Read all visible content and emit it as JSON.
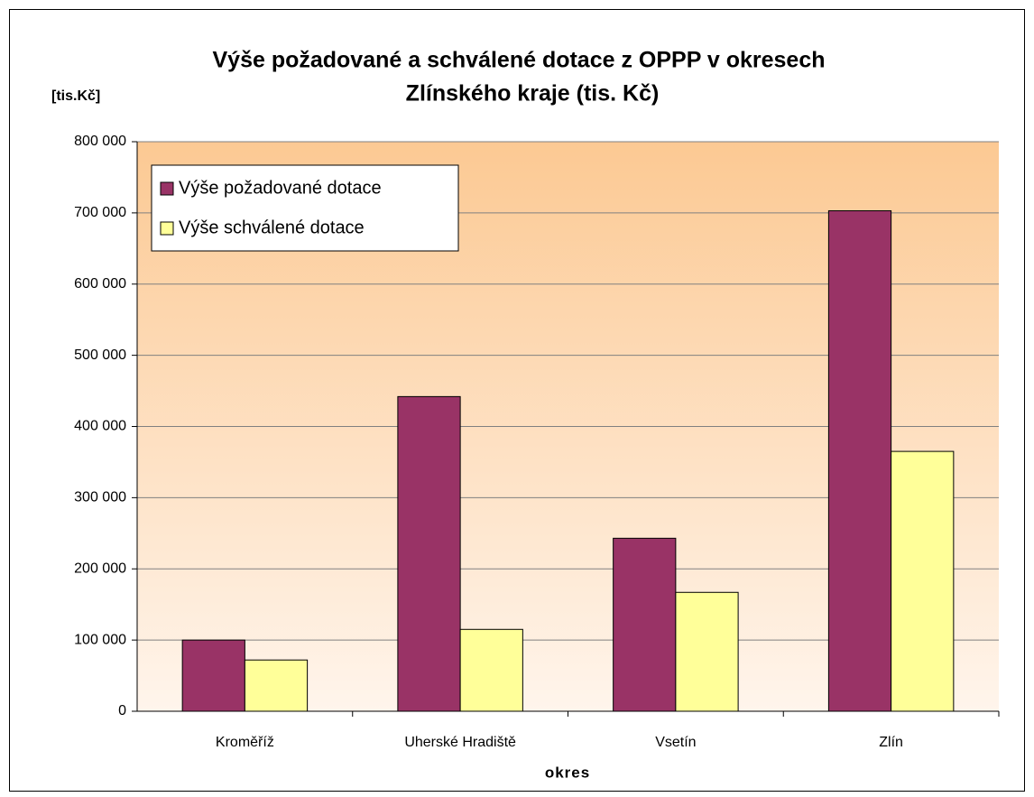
{
  "chart_data": {
    "type": "bar",
    "title": "Výše požadované a schválené dotace z OPPP v okresech",
    "subtitle": "Zlínského kraje (tis. Kč)",
    "y_axis_label": "[tis.Kč]",
    "x_axis_label": "okres",
    "categories": [
      "Kroměříž",
      "Uherské Hradiště",
      "Vsetín",
      "Zlín"
    ],
    "series": [
      {
        "name": "Výše požadované dotace",
        "color": "#993366",
        "values": [
          100000,
          442000,
          243000,
          703000
        ]
      },
      {
        "name": "Výše schválené dotace",
        "color": "#ffff99",
        "values": [
          72000,
          115000,
          167000,
          365000
        ]
      }
    ],
    "ylim": [
      0,
      800000
    ],
    "yticks": [
      0,
      {
        "value": 100000,
        "label": "100 000"
      },
      {
        "value": 200000,
        "label": "200 000"
      },
      {
        "value": 300000,
        "label": "300 000"
      },
      {
        "value": 400000,
        "label": "400 000"
      },
      {
        "value": 500000,
        "label": "500 000"
      },
      {
        "value": 600000,
        "label": "600 000"
      },
      {
        "value": 700000,
        "label": "700 000"
      },
      {
        "value": 800000,
        "label": "800 000"
      }
    ],
    "grid": true,
    "legend": "upper left"
  }
}
